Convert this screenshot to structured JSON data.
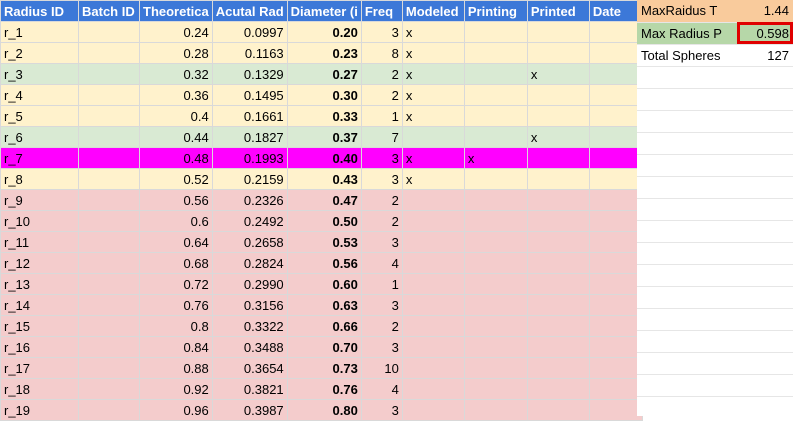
{
  "headers": [
    "Radius ID",
    "Batch ID",
    "Theoretica",
    "Acutal Rad",
    "Diameter (i",
    "Freq",
    "Modeled",
    "Printing",
    "Printed",
    "Date"
  ],
  "rows": [
    {
      "id": "r_1",
      "batch": "",
      "theo": "0.24",
      "actual": "0.0997",
      "diam": "0.20",
      "freq": "3",
      "modeled": "x",
      "printing": "",
      "printed": "",
      "date": "",
      "status": "modeled"
    },
    {
      "id": "r_2",
      "batch": "",
      "theo": "0.28",
      "actual": "0.1163",
      "diam": "0.23",
      "freq": "8",
      "modeled": "x",
      "printing": "",
      "printed": "",
      "date": "",
      "status": "modeled"
    },
    {
      "id": "r_3",
      "batch": "",
      "theo": "0.32",
      "actual": "0.1329",
      "diam": "0.27",
      "freq": "2",
      "modeled": "x",
      "printing": "",
      "printed": "x",
      "date": "",
      "status": "printed"
    },
    {
      "id": "r_4",
      "batch": "",
      "theo": "0.36",
      "actual": "0.1495",
      "diam": "0.30",
      "freq": "2",
      "modeled": "x",
      "printing": "",
      "printed": "",
      "date": "",
      "status": "modeled"
    },
    {
      "id": "r_5",
      "batch": "",
      "theo": "0.4",
      "actual": "0.1661",
      "diam": "0.33",
      "freq": "1",
      "modeled": "x",
      "printing": "",
      "printed": "",
      "date": "",
      "status": "modeled"
    },
    {
      "id": "r_6",
      "batch": "",
      "theo": "0.44",
      "actual": "0.1827",
      "diam": "0.37",
      "freq": "7",
      "modeled": "",
      "printing": "",
      "printed": "x",
      "date": "",
      "status": "printed"
    },
    {
      "id": "r_7",
      "batch": "",
      "theo": "0.48",
      "actual": "0.1993",
      "diam": "0.40",
      "freq": "3",
      "modeled": "x",
      "printing": "x",
      "printed": "",
      "date": "",
      "status": "printing"
    },
    {
      "id": "r_8",
      "batch": "",
      "theo": "0.52",
      "actual": "0.2159",
      "diam": "0.43",
      "freq": "3",
      "modeled": "x",
      "printing": "",
      "printed": "",
      "date": "",
      "status": "modeled"
    },
    {
      "id": "r_9",
      "batch": "",
      "theo": "0.56",
      "actual": "0.2326",
      "diam": "0.47",
      "freq": "2",
      "modeled": "",
      "printing": "",
      "printed": "",
      "date": "",
      "status": "none"
    },
    {
      "id": "r_10",
      "batch": "",
      "theo": "0.6",
      "actual": "0.2492",
      "diam": "0.50",
      "freq": "2",
      "modeled": "",
      "printing": "",
      "printed": "",
      "date": "",
      "status": "none"
    },
    {
      "id": "r_11",
      "batch": "",
      "theo": "0.64",
      "actual": "0.2658",
      "diam": "0.53",
      "freq": "3",
      "modeled": "",
      "printing": "",
      "printed": "",
      "date": "",
      "status": "none"
    },
    {
      "id": "r_12",
      "batch": "",
      "theo": "0.68",
      "actual": "0.2824",
      "diam": "0.56",
      "freq": "4",
      "modeled": "",
      "printing": "",
      "printed": "",
      "date": "",
      "status": "none"
    },
    {
      "id": "r_13",
      "batch": "",
      "theo": "0.72",
      "actual": "0.2990",
      "diam": "0.60",
      "freq": "1",
      "modeled": "",
      "printing": "",
      "printed": "",
      "date": "",
      "status": "none"
    },
    {
      "id": "r_14",
      "batch": "",
      "theo": "0.76",
      "actual": "0.3156",
      "diam": "0.63",
      "freq": "3",
      "modeled": "",
      "printing": "",
      "printed": "",
      "date": "",
      "status": "none"
    },
    {
      "id": "r_15",
      "batch": "",
      "theo": "0.8",
      "actual": "0.3322",
      "diam": "0.66",
      "freq": "2",
      "modeled": "",
      "printing": "",
      "printed": "",
      "date": "",
      "status": "none"
    },
    {
      "id": "r_16",
      "batch": "",
      "theo": "0.84",
      "actual": "0.3488",
      "diam": "0.70",
      "freq": "3",
      "modeled": "",
      "printing": "",
      "printed": "",
      "date": "",
      "status": "none"
    },
    {
      "id": "r_17",
      "batch": "",
      "theo": "0.88",
      "actual": "0.3654",
      "diam": "0.73",
      "freq": "10",
      "modeled": "",
      "printing": "",
      "printed": "",
      "date": "",
      "status": "none"
    },
    {
      "id": "r_18",
      "batch": "",
      "theo": "0.92",
      "actual": "0.3821",
      "diam": "0.76",
      "freq": "4",
      "modeled": "",
      "printing": "",
      "printed": "",
      "date": "",
      "status": "none"
    },
    {
      "id": "r_19",
      "batch": "",
      "theo": "0.96",
      "actual": "0.3987",
      "diam": "0.80",
      "freq": "3",
      "modeled": "",
      "printing": "",
      "printed": "",
      "date": "",
      "status": "none"
    }
  ],
  "summary": [
    {
      "label": "MaxRaidus T",
      "value": "1.44"
    },
    {
      "label": "Max Radius P",
      "value": "0.598"
    },
    {
      "label": "Total Spheres",
      "value": "127"
    }
  ],
  "colors": {
    "header": "#3c78d8",
    "modeled": "#fff2cc",
    "printed": "#d9ead3",
    "printing": "#ff00ff",
    "none": "#f4cccc",
    "summary_t": "#f9cb9c",
    "summary_p": "#b6d7a8",
    "selection": "#e00000"
  }
}
